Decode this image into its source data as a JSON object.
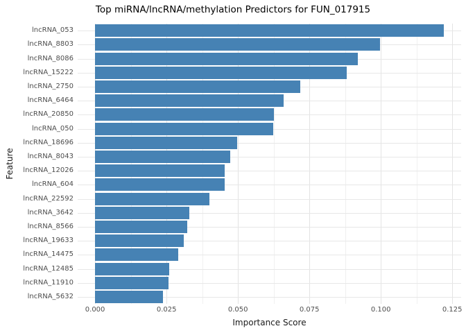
{
  "figure": {
    "background": "#ffffff"
  },
  "chart_data": {
    "type": "bar",
    "orientation": "horizontal",
    "title": "Top miRNA/lncRNA/methylation Predictors for FUN_017915",
    "xlabel": "Importance Score",
    "ylabel": "Feature",
    "bar_color": "#4682b4",
    "grid": true,
    "legend": "none",
    "xlim": [
      -0.0061,
      0.1281
    ],
    "x_ticks": [
      0.0,
      0.025,
      0.05,
      0.075,
      0.1,
      0.125
    ],
    "x_tick_labels": [
      "0.000",
      "0.025",
      "0.050",
      "0.075",
      "0.100",
      "0.125"
    ],
    "x_minor_ticks": [
      0.0125,
      0.0375,
      0.0625,
      0.0875,
      0.1125
    ],
    "categories": [
      "lncRNA_053",
      "lncRNA_8803",
      "lncRNA_8086",
      "lncRNA_15222",
      "lncRNA_2750",
      "lncRNA_6464",
      "lncRNA_20850",
      "lncRNA_050",
      "lncRNA_18696",
      "lncRNA_8043",
      "lncRNA_12026",
      "lncRNA_604",
      "lncRNA_22592",
      "lncRNA_3642",
      "lncRNA_8566",
      "lncRNA_19633",
      "lncRNA_14475",
      "lncRNA_12485",
      "lncRNA_11910",
      "lncRNA_5632"
    ],
    "values": [
      0.1221,
      0.0998,
      0.0919,
      0.0881,
      0.0717,
      0.0661,
      0.0627,
      0.0623,
      0.0498,
      0.0472,
      0.0454,
      0.0453,
      0.04,
      0.033,
      0.0322,
      0.031,
      0.0292,
      0.0259,
      0.0256,
      0.0237
    ],
    "colors": {
      "major_grid": "#e3e3e3",
      "minor_grid": "#f0f0f0",
      "tick_text": "#4d4d4d",
      "title_text": "#000000"
    }
  }
}
